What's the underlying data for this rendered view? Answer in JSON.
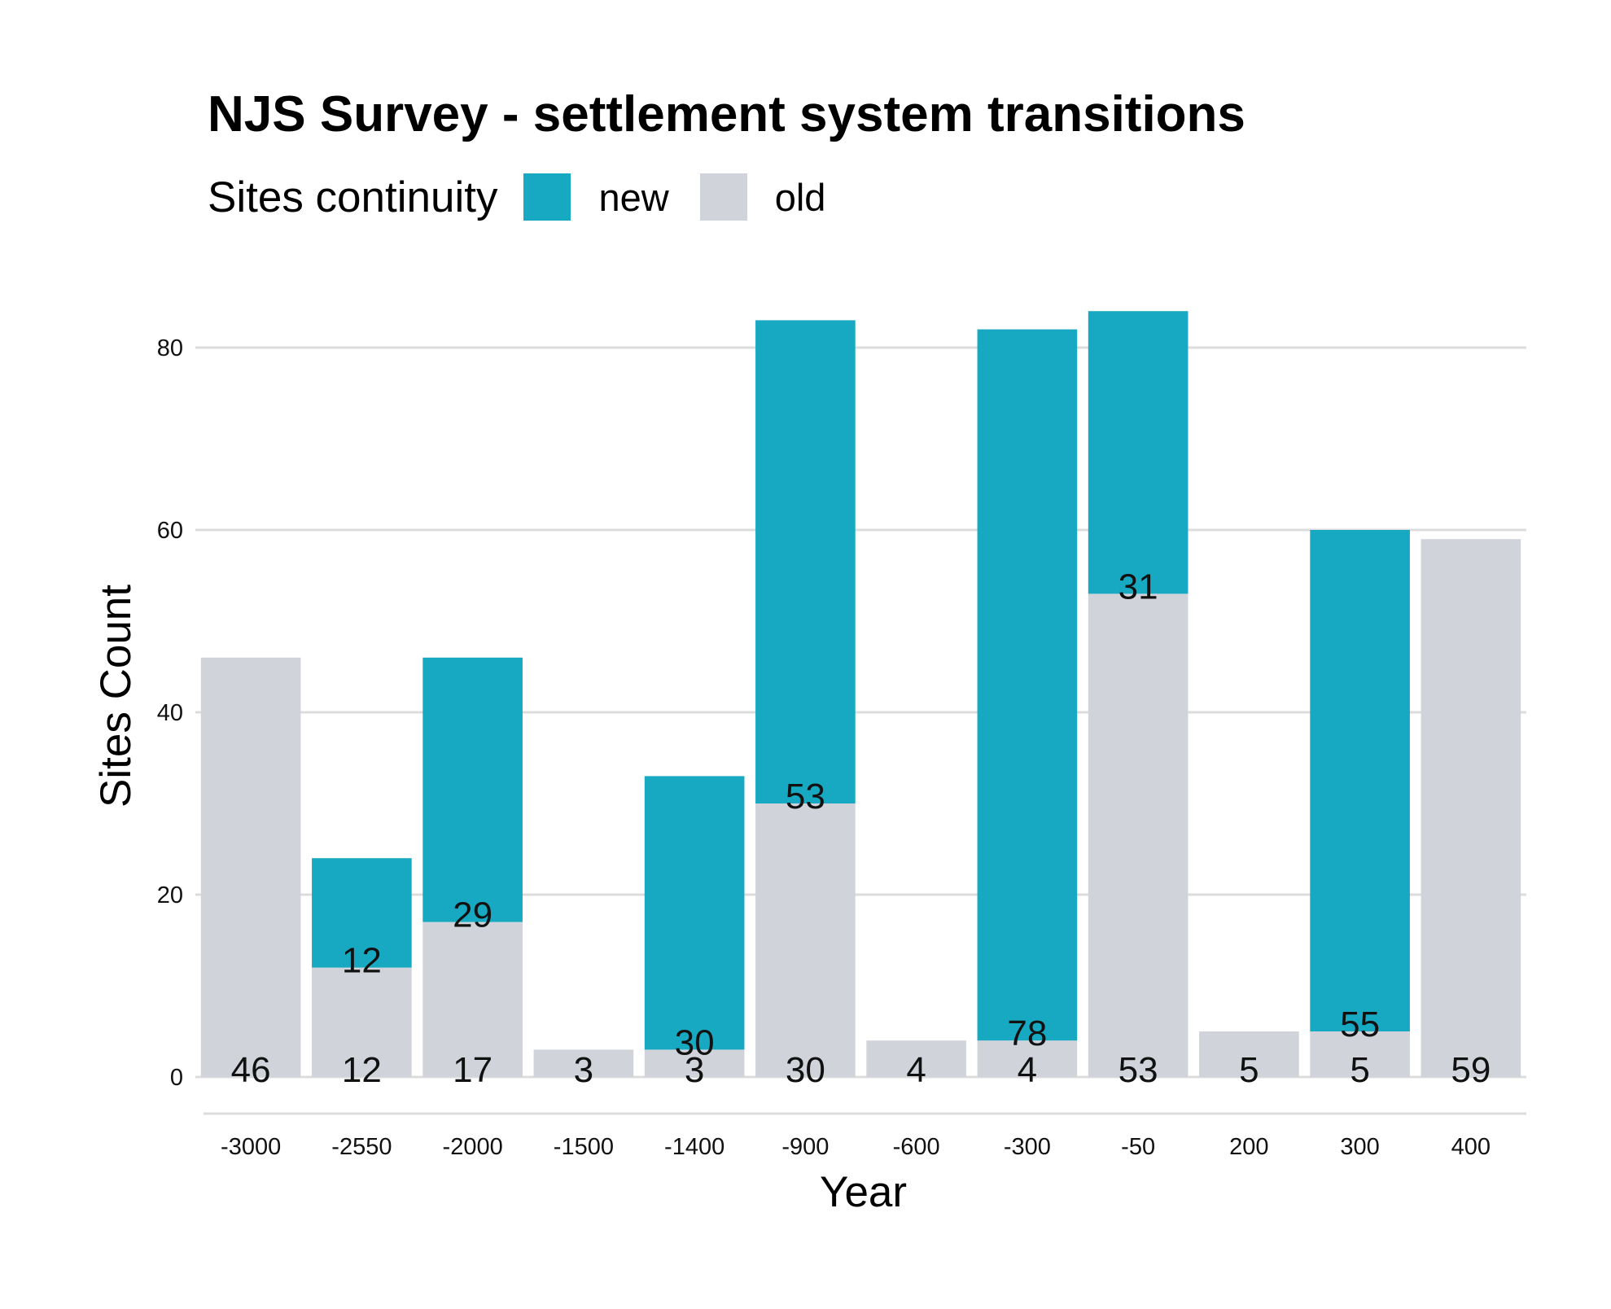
{
  "chart_data": {
    "type": "bar",
    "stacked": true,
    "title": "NJS Survey - settlement system transitions",
    "xlabel": "Year",
    "ylabel": "Sites Count",
    "legend_title": "Sites continuity",
    "legend_position": "top-left",
    "grid": "horizontal",
    "ylim": [
      -4,
      89
    ],
    "yticks": [
      0,
      20,
      40,
      60,
      80
    ],
    "categories": [
      "-3000",
      "-2550",
      "-2000",
      "-1500",
      "-1400",
      "-900",
      "-600",
      "-300",
      "-50",
      "200",
      "300",
      "400"
    ],
    "series": [
      {
        "name": "old",
        "color": "#d0d4da",
        "values": [
          46,
          12,
          17,
          3,
          3,
          30,
          4,
          4,
          53,
          5,
          5,
          59
        ]
      },
      {
        "name": "new",
        "color": "#17a9c1",
        "values": [
          0,
          12,
          29,
          0,
          30,
          53,
          0,
          78,
          31,
          0,
          55,
          0
        ]
      }
    ]
  }
}
